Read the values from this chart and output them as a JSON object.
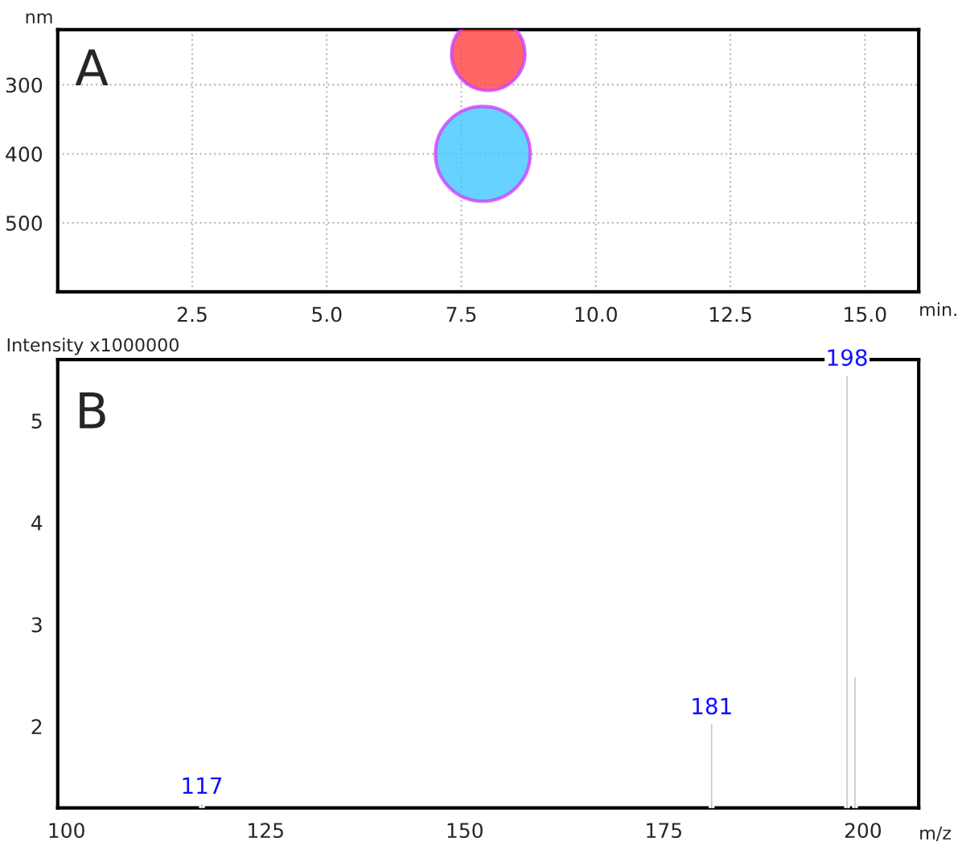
{
  "chart_data": [
    {
      "type": "bubble",
      "xlabel": "min.",
      "ylabel": "nm",
      "annotations": [
        "A"
      ],
      "x": [
        8.0,
        7.9
      ],
      "values": [
        255,
        400
      ],
      "sizes": [
        0.6,
        1
      ],
      "colors": [
        "#ff4040",
        "#40c8ff"
      ],
      "xlim": [
        0,
        16
      ],
      "ylim": [
        600,
        220
      ],
      "xticks": [
        {
          "value": 2.5,
          "label": "2.5"
        },
        {
          "value": 5.0,
          "label": "5.0"
        },
        {
          "value": 7.5,
          "label": "7.5"
        },
        {
          "value": 10.0,
          "label": "10.0"
        },
        {
          "value": 12.5,
          "label": "12.5"
        },
        {
          "value": 15.0,
          "label": "15.0"
        }
      ],
      "yticks": [
        300,
        400,
        500
      ],
      "grid": true
    },
    {
      "type": "bar",
      "xlabel": "m/z",
      "ylabel": "Intensity x1000000",
      "annotations": [
        "B",
        {
          "text": "117",
          "x": 117,
          "y": 1.25
        },
        {
          "text": "181",
          "x": 181,
          "y": 2.03
        },
        {
          "text": "198",
          "x": 198,
          "y": 5.45
        }
      ],
      "x": [
        117,
        181,
        198,
        199
      ],
      "values": [
        1.25,
        2.03,
        5.45,
        2.49
      ],
      "colors": [
        "#c8c8c8",
        "#c8c8c8",
        "#c8c8c8",
        "#c8c8c8"
      ],
      "xlim": [
        98.9,
        207
      ],
      "ylim": [
        1.2,
        5.6
      ],
      "xticks": [
        100,
        125,
        150,
        175,
        200
      ],
      "yticks": [
        2,
        3,
        4,
        5
      ],
      "grid": false
    }
  ]
}
